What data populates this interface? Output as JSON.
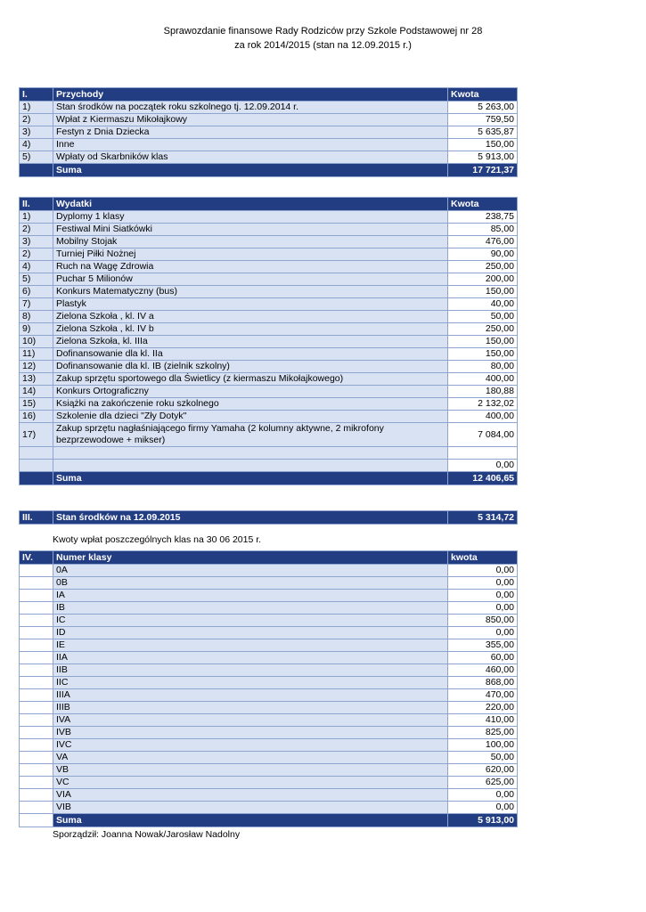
{
  "page": {
    "title_line1": "Sprawozdanie finansowe Rady Rodziców przy Szkole Podstawowej nr 28",
    "title_line2": "za rok 2014/2015 (stan na 12.09.2015 r.)",
    "class_note": "Kwoty wpłat poszczególnych klas na 30 06 2015 r.",
    "footer": "Sporządził: Joanna Nowak/Jarosław Nadolny"
  },
  "income": {
    "id": "I.",
    "header": "Przychody",
    "amount_header": "Kwota",
    "rows": [
      {
        "no": "1)",
        "label": "Stan środków na początek roku szkolnego tj. 12.09.2014 r.",
        "amount": "5 263,00"
      },
      {
        "no": "2)",
        "label": "Wpłat z Kiermaszu Mikołajkowy",
        "amount": "759,50"
      },
      {
        "no": "3)",
        "label": "Festyn z Dnia  Dziecka",
        "amount": "5 635,87"
      },
      {
        "no": "4)",
        "label": "Inne",
        "amount": "150,00"
      },
      {
        "no": "5)",
        "label": "Wpłaty od Skarbników klas",
        "amount": "5 913,00"
      }
    ],
    "suma": {
      "label": "Suma",
      "value": "17 721,37"
    }
  },
  "expenses": {
    "id": "II.",
    "header": "Wydatki",
    "amount_header": "Kwota",
    "rows": [
      {
        "no": "1)",
        "label": "Dyplomy 1 klasy",
        "amount": "238,75"
      },
      {
        "no": "2)",
        "label": "Festiwal Mini Siatkówki",
        "amount": "85,00"
      },
      {
        "no": "3)",
        "label": "Mobilny Stojak",
        "amount": "476,00"
      },
      {
        "no": "2)",
        "label": "Turniej Piłki Nożnej",
        "amount": "90,00"
      },
      {
        "no": "4)",
        "label": "Ruch na Wagę Zdrowia",
        "amount": "250,00"
      },
      {
        "no": "5)",
        "label": "Puchar 5 Milionów",
        "amount": "200,00"
      },
      {
        "no": "6)",
        "label": "Konkurs Matematyczny (bus)",
        "amount": "150,00"
      },
      {
        "no": "7)",
        "label": "Plastyk",
        "amount": "40,00"
      },
      {
        "no": "8)",
        "label": "Zielona Szkoła , kl. IV a",
        "amount": "50,00"
      },
      {
        "no": "9)",
        "label": "Zielona Szkoła , kl. IV b",
        "amount": "250,00"
      },
      {
        "no": "10)",
        "label": "Zielona Szkoła, kl.  IIIa",
        "amount": "150,00"
      },
      {
        "no": "11)",
        "label": "Dofinansowanie dla kl.  IIa",
        "amount": "150,00"
      },
      {
        "no": "12)",
        "label": "Dofinansowanie dla kl. IB (zielnik szkolny)",
        "amount": "80,00"
      },
      {
        "no": "13)",
        "label": "Zakup sprzętu sportowego dla Świetlicy (z kiermaszu Mikołajkowego)",
        "amount": "400,00"
      },
      {
        "no": "14)",
        "label": "Konkurs Ortograficzny",
        "amount": "180,88"
      },
      {
        "no": "15)",
        "label": "Książki na zakończenie roku szkolnego",
        "amount": "2 132,02"
      },
      {
        "no": "16)",
        "label": "Szkolenie dla dzieci \"Zły Dotyk\"",
        "amount": "400,00"
      },
      {
        "no": "17)",
        "label": "Zakup sprzętu nagłaśniającego firmy Yamaha (2 kolumny aktywne, 2 mikrofony bezprzewodowe + mikser)",
        "amount": "7 084,00"
      },
      {
        "no": "",
        "label": "",
        "amount": ""
      },
      {
        "no": "",
        "label": "",
        "amount": "0,00"
      }
    ],
    "suma": {
      "label": "Suma",
      "value": "12 406,65"
    }
  },
  "balance": {
    "id": "III.",
    "label": "Stan  środków na 12.09.2015",
    "value": "5 314,72"
  },
  "classes": {
    "id": "IV.",
    "header": "Numer klasy",
    "amount_header": "kwota",
    "rows": [
      {
        "label": "0A",
        "amount": "0,00"
      },
      {
        "label": "0B",
        "amount": "0,00"
      },
      {
        "label": "IA",
        "amount": "0,00"
      },
      {
        "label": "IB",
        "amount": "0,00"
      },
      {
        "label": "IC",
        "amount": "850,00"
      },
      {
        "label": "ID",
        "amount": "0,00"
      },
      {
        "label": "IE",
        "amount": "355,00"
      },
      {
        "label": "IIA",
        "amount": "60,00"
      },
      {
        "label": "IIB",
        "amount": "460,00"
      },
      {
        "label": "IIC",
        "amount": "868,00"
      },
      {
        "label": "IIIA",
        "amount": "470,00"
      },
      {
        "label": "IIIB",
        "amount": "220,00"
      },
      {
        "label": "IVA",
        "amount": "410,00"
      },
      {
        "label": "IVB",
        "amount": "825,00"
      },
      {
        "label": "IVC",
        "amount": "100,00"
      },
      {
        "label": "VA",
        "amount": "50,00"
      },
      {
        "label": "VB",
        "amount": "620,00"
      },
      {
        "label": "VC",
        "amount": "625,00"
      },
      {
        "label": "VIA",
        "amount": "0,00"
      },
      {
        "label": "VIB",
        "amount": "0,00"
      }
    ],
    "suma": {
      "label": "Suma",
      "value": "5 913,00"
    }
  },
  "colors": {
    "navy": "#233d82",
    "light": "#d9e2f3",
    "border": "#8ea6cf"
  }
}
